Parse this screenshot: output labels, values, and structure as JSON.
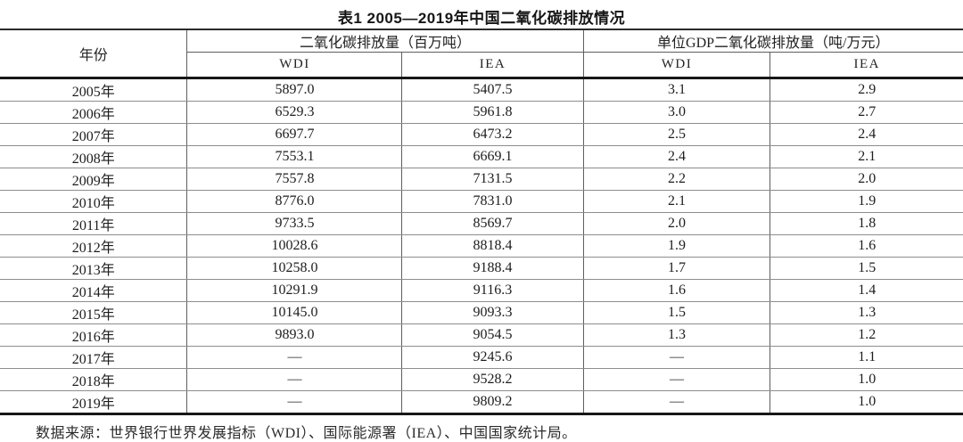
{
  "title": "表1 2005—2019年中国二氧化碳排放情况",
  "table": {
    "year_header": "年份",
    "group_headers": {
      "emissions": "二氧化碳排放量（百万吨）",
      "intensity": "单位GDP二氧化碳排放量（吨/万元）"
    },
    "sub_headers": [
      "WDI",
      "IEA",
      "WDI",
      "IEA"
    ],
    "rows": [
      [
        "2005年",
        "5897.0",
        "5407.5",
        "3.1",
        "2.9"
      ],
      [
        "2006年",
        "6529.3",
        "5961.8",
        "3.0",
        "2.7"
      ],
      [
        "2007年",
        "6697.7",
        "6473.2",
        "2.5",
        "2.4"
      ],
      [
        "2008年",
        "7553.1",
        "6669.1",
        "2.4",
        "2.1"
      ],
      [
        "2009年",
        "7557.8",
        "7131.5",
        "2.2",
        "2.0"
      ],
      [
        "2010年",
        "8776.0",
        "7831.0",
        "2.1",
        "1.9"
      ],
      [
        "2011年",
        "9733.5",
        "8569.7",
        "2.0",
        "1.8"
      ],
      [
        "2012年",
        "10028.6",
        "8818.4",
        "1.9",
        "1.6"
      ],
      [
        "2013年",
        "10258.0",
        "9188.4",
        "1.7",
        "1.5"
      ],
      [
        "2014年",
        "10291.9",
        "9116.3",
        "1.6",
        "1.4"
      ],
      [
        "2015年",
        "10145.0",
        "9093.3",
        "1.5",
        "1.3"
      ],
      [
        "2016年",
        "9893.0",
        "9054.5",
        "1.3",
        "1.2"
      ],
      [
        "2017年",
        "—",
        "9245.6",
        "—",
        "1.1"
      ],
      [
        "2018年",
        "—",
        "9528.2",
        "—",
        "1.0"
      ],
      [
        "2019年",
        "—",
        "9809.2",
        "—",
        "1.0"
      ]
    ]
  },
  "footnote": "数据来源：世界银行世界发展指标（WDI）、国际能源署（IEA）、中国国家统计局。",
  "colors": {
    "rule_strong": "#171717",
    "rule_light": "#8d8d8d",
    "rule_vertical": "#5e5e5e",
    "text": "#1f1f1f",
    "background": "#ffffff"
  },
  "chart_data": {
    "type": "table",
    "title": "表1 2005—2019年中国二氧化碳排放情况",
    "columns": [
      "年份",
      "二氧化碳排放量（百万吨）- WDI",
      "二氧化碳排放量（百万吨）- IEA",
      "单位GDP二氧化碳排放量（吨/万元）- WDI",
      "单位GDP二氧化碳排放量（吨/万元）- IEA"
    ],
    "years": [
      "2005",
      "2006",
      "2007",
      "2008",
      "2009",
      "2010",
      "2011",
      "2012",
      "2013",
      "2014",
      "2015",
      "2016",
      "2017",
      "2018",
      "2019"
    ],
    "series": [
      {
        "name": "二氧化碳排放量 WDI (百万吨)",
        "values": [
          5897.0,
          6529.3,
          6697.7,
          7553.1,
          7557.8,
          8776.0,
          9733.5,
          10028.6,
          10258.0,
          10291.9,
          10145.0,
          9893.0,
          null,
          null,
          null
        ]
      },
      {
        "name": "二氧化碳排放量 IEA (百万吨)",
        "values": [
          5407.5,
          5961.8,
          6473.2,
          6669.1,
          7131.5,
          7831.0,
          8569.7,
          8818.4,
          9188.4,
          9116.3,
          9093.3,
          9054.5,
          9245.6,
          9528.2,
          9809.2
        ]
      },
      {
        "name": "单位GDP二氧化碳排放量 WDI (吨/万元)",
        "values": [
          3.1,
          3.0,
          2.5,
          2.4,
          2.2,
          2.1,
          2.0,
          1.9,
          1.7,
          1.6,
          1.5,
          1.3,
          null,
          null,
          null
        ]
      },
      {
        "name": "单位GDP二氧化碳排放量 IEA (吨/万元)",
        "values": [
          2.9,
          2.7,
          2.4,
          2.1,
          2.0,
          1.9,
          1.8,
          1.6,
          1.5,
          1.4,
          1.3,
          1.2,
          1.1,
          1.0,
          1.0
        ]
      }
    ],
    "missing_value_marker": "—",
    "source": "数据来源：世界银行世界发展指标（WDI）、国际能源署（IEA）、中国国家统计局。"
  }
}
